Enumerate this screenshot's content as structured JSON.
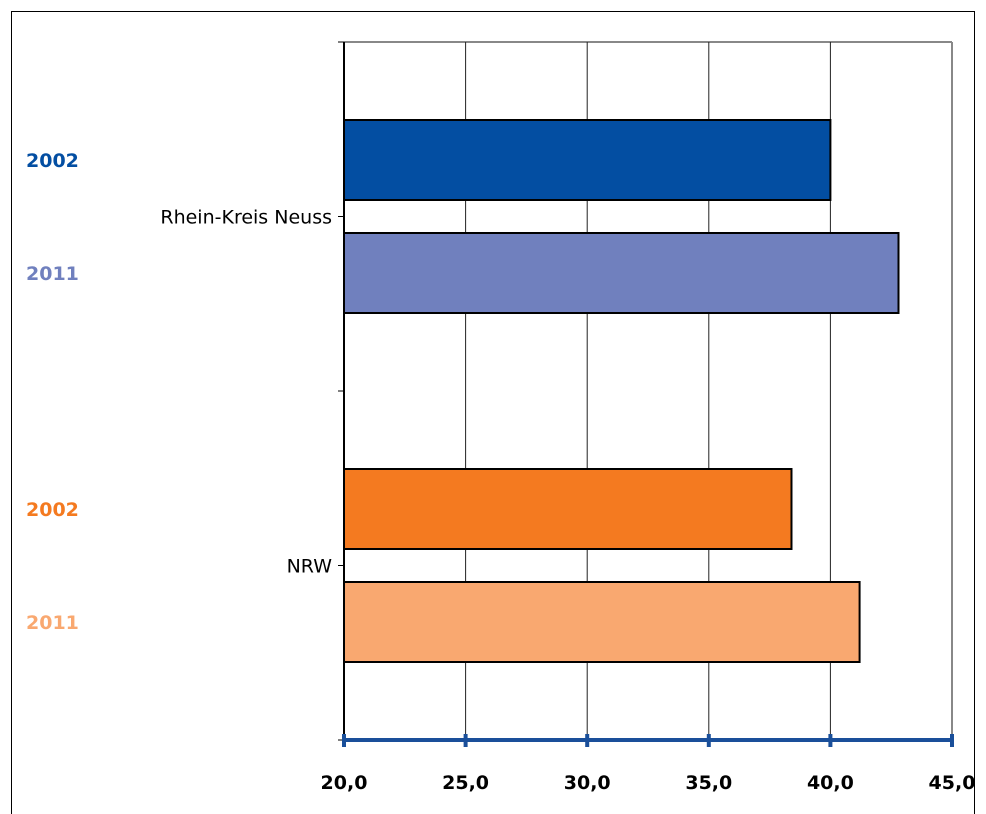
{
  "chart_data": {
    "type": "bar",
    "orientation": "horizontal",
    "title": "",
    "xlabel": "",
    "ylabel": "",
    "xlim": [
      20,
      45
    ],
    "x_ticks": [
      20,
      25,
      30,
      35,
      40,
      45
    ],
    "x_tick_labels": [
      "20,0",
      "25,0",
      "30,0",
      "35,0",
      "40,0",
      "45,0"
    ],
    "grid": "vertical",
    "categories": [
      "Rhein-Kreis Neuss",
      "NRW"
    ],
    "groups": [
      {
        "category": "Rhein-Kreis Neuss",
        "bars": [
          {
            "year": "2002",
            "value": 40.0,
            "color": "#034ea2"
          },
          {
            "year": "2011",
            "value": 42.8,
            "color": "#7080be"
          }
        ]
      },
      {
        "category": "NRW",
        "bars": [
          {
            "year": "2002",
            "value": 38.4,
            "color": "#f47a20"
          },
          {
            "year": "2011",
            "value": 41.2,
            "color": "#f9a870"
          }
        ]
      }
    ],
    "axis_color": "#1a4f9a"
  }
}
